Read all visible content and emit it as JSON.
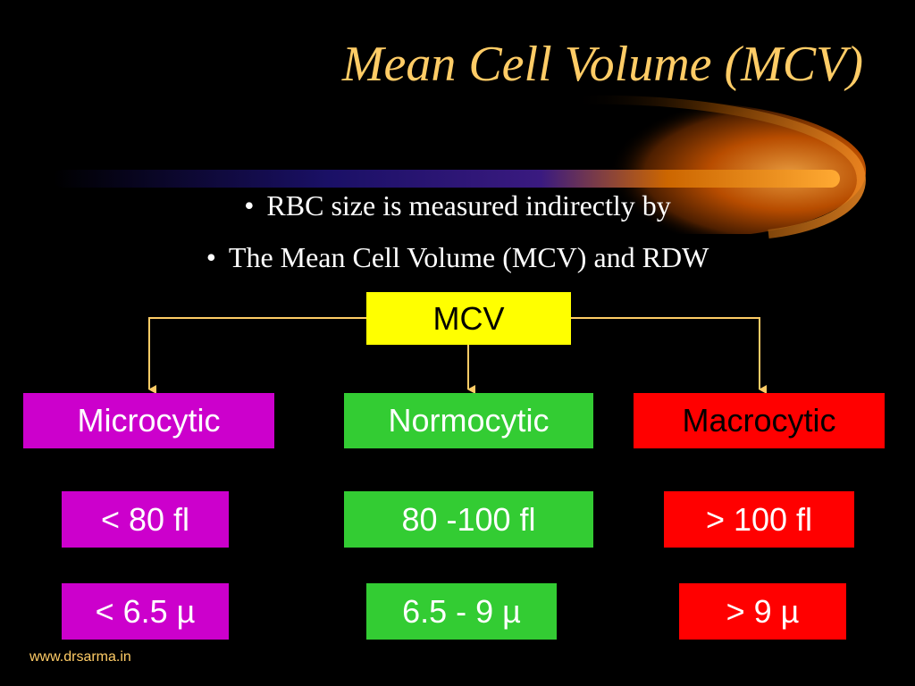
{
  "slide": {
    "title": "Mean Cell Volume (MCV)",
    "bullets": [
      "RBC size is measured indirectly by",
      "The Mean Cell Volume (MCV) and RDW"
    ],
    "bullet_symbol": "•",
    "footer": "www.drsarma.in"
  },
  "diagram": {
    "root": "MCV",
    "categories": [
      {
        "label": "Microcytic",
        "volume": "< 80 fl",
        "diameter": "< 6.5 µ",
        "color": "#cc00cc"
      },
      {
        "label": "Normocytic",
        "volume": " 80 -100 fl",
        "diameter": "6.5 - 9 µ",
        "color": "#33cc33"
      },
      {
        "label": "Macrocytic",
        "volume": "> 100 fl",
        "diameter": "> 9 µ",
        "color": "#ff0000"
      }
    ]
  },
  "colors": {
    "background": "#000000",
    "title": "#ffcc66",
    "root_box": "#ffff00",
    "connector": "#ffcc66"
  }
}
